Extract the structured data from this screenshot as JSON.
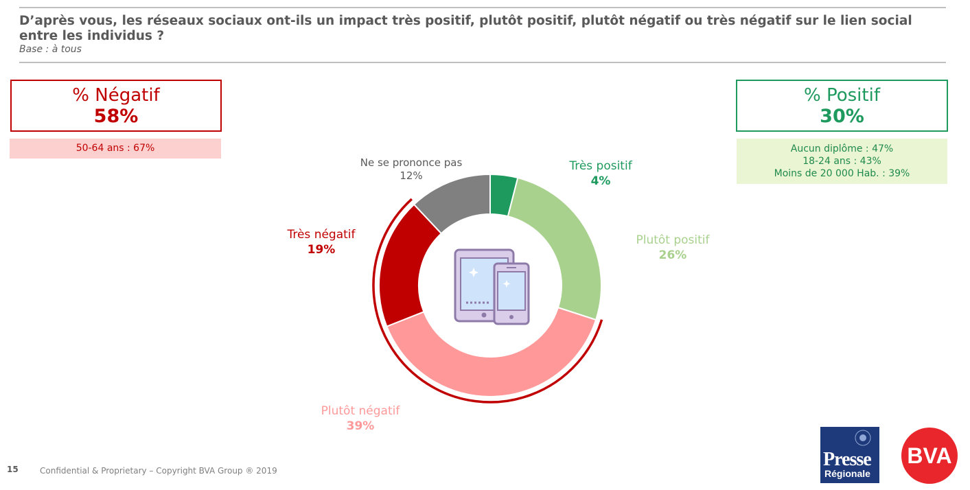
{
  "header": {
    "question": "D’après vous, les réseaux sociaux ont-ils un impact très positif, plutôt positif, plutôt négatif ou très négatif sur le lien social entre les individus ?",
    "base": "Base : à tous"
  },
  "negative_box": {
    "label": "% Négatif",
    "value": "58%",
    "note": "50-64 ans : 67%"
  },
  "positive_box": {
    "label": "% Positif",
    "value": "30%",
    "notes": [
      "Aucun diplôme : 47%",
      "18-24 ans : 43%",
      "Moins de 20 000 Hab. : 39%"
    ]
  },
  "chart_data": {
    "type": "donut",
    "categories": [
      "Très positif",
      "Plutôt positif",
      "Plutôt négatif",
      "Très négatif",
      "Ne se prononce pas"
    ],
    "values": [
      4,
      26,
      39,
      19,
      12
    ],
    "value_labels": [
      "4%",
      "26%",
      "39%",
      "19%",
      "12%"
    ],
    "colors": [
      "#1e9a5e",
      "#a9d18e",
      "#ff9999",
      "#c00000",
      "#808080"
    ],
    "label_colors": [
      "#1e9a5e",
      "#a9d18e",
      "#ff9999",
      "#c00000",
      "#595959"
    ],
    "negative_bracket": {
      "covers": [
        "Plutôt négatif",
        "Très négatif"
      ],
      "color": "#c00000"
    },
    "center_icon": "tablet-phone-icon"
  },
  "footer": {
    "page_number": "15",
    "copyright": "Confidential & Proprietary – Copyright BVA Group ®  2019"
  },
  "logos": {
    "presse": [
      "Presse",
      "Régionale"
    ],
    "bva": "BVA"
  }
}
